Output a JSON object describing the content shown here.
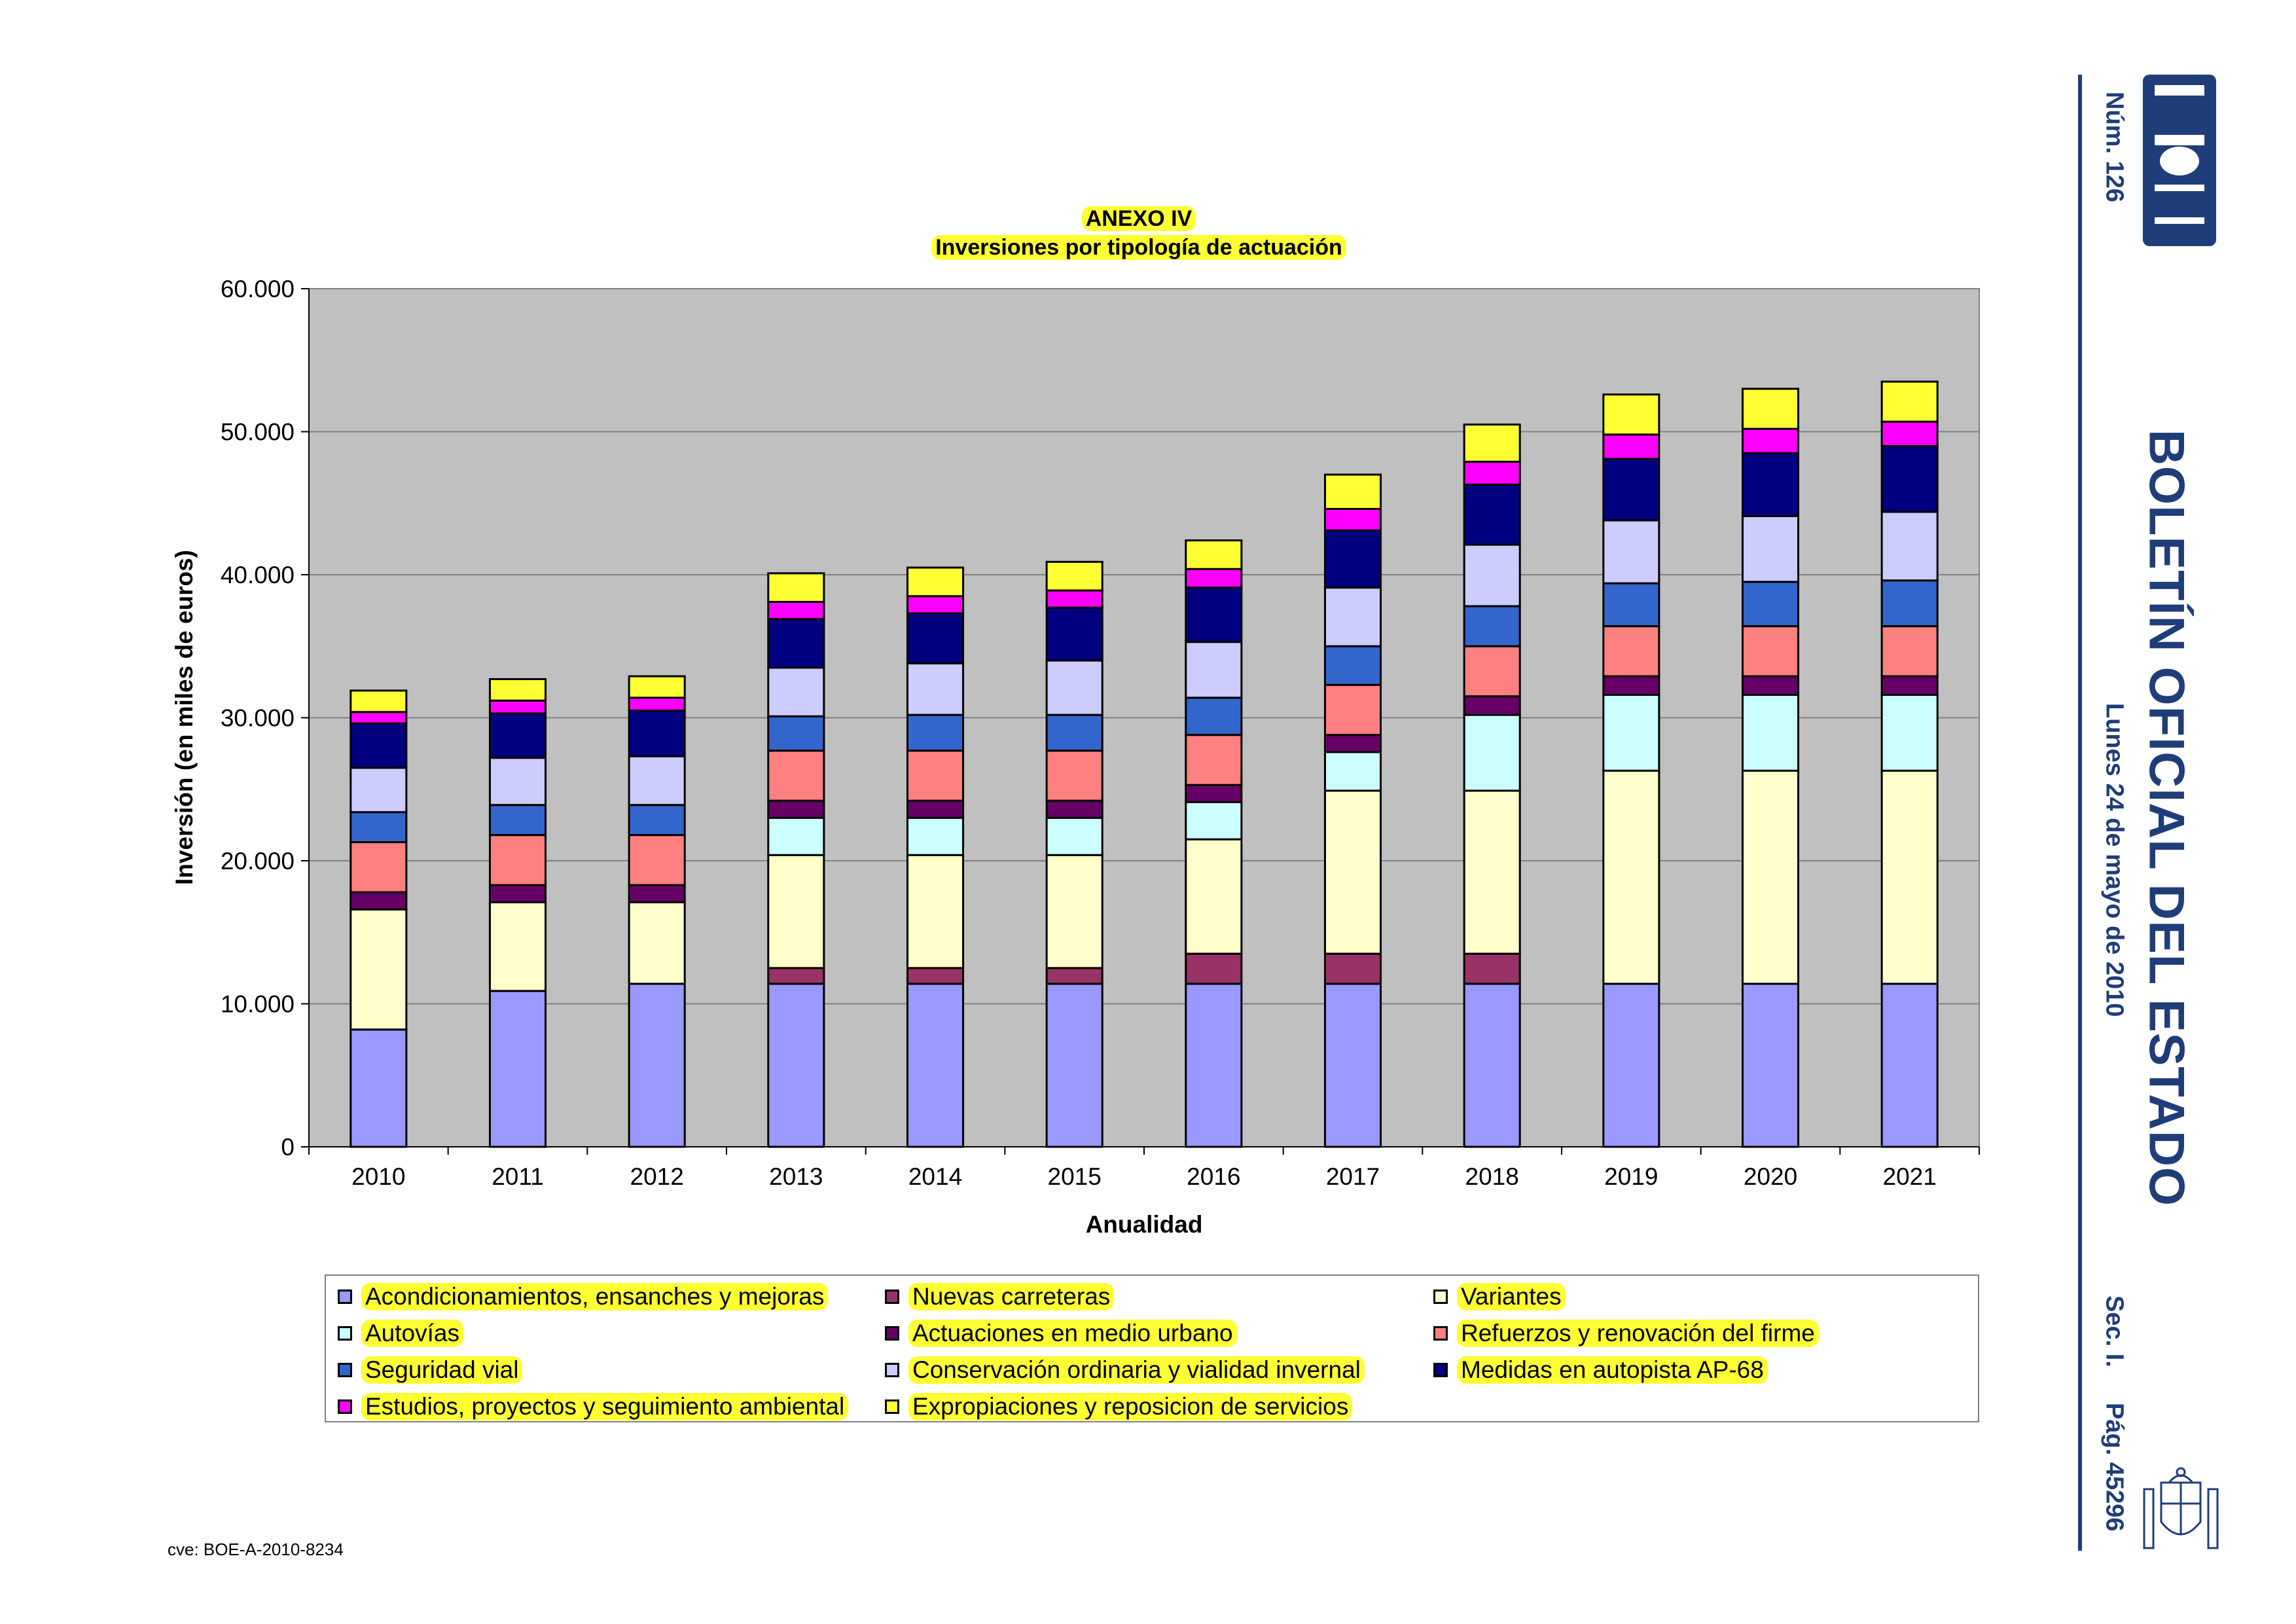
{
  "header": {
    "issue": "Núm. 126",
    "date": "Lunes 24 de mayo de 2010",
    "section": "Sec. I.",
    "page": "Pág. 45296",
    "publication_title": "BOLETÍN OFICIAL DEL ESTADO",
    "logo_text": "BOE"
  },
  "footer": {
    "cve": "cve: BOE-A-2010-8234"
  },
  "colors": {
    "plot_background": "#c0c0c0",
    "gridline": "#808080",
    "header_blue": "#1f3d79",
    "title_highlight": "#ffff33"
  },
  "chart_data": {
    "type": "bar",
    "stacked": true,
    "title": "ANEXO IV",
    "subtitle": "Inversiones por tipología de actuación",
    "xlabel": "Anualidad",
    "ylabel": "Inversión (en miles de euros)",
    "ylim": [
      0,
      60000
    ],
    "yticks": [
      "0",
      "10.000",
      "20.000",
      "30.000",
      "40.000",
      "50.000",
      "60.000"
    ],
    "ytick_values": [
      0,
      10000,
      20000,
      30000,
      40000,
      50000,
      60000
    ],
    "grid": true,
    "legend_position": "bottom",
    "categories": [
      "2010",
      "2011",
      "2012",
      "2013",
      "2014",
      "2015",
      "2016",
      "2017",
      "2018",
      "2019",
      "2020",
      "2021"
    ],
    "series": [
      {
        "name": "Acondicionamientos, ensanches y mejoras",
        "color": "#9999ff",
        "values": [
          8200,
          10900,
          11400,
          11400,
          11400,
          11400,
          11400,
          11400,
          11400,
          11400,
          11400,
          11400
        ]
      },
      {
        "name": "Nuevas carreteras",
        "color": "#993366",
        "values": [
          0,
          0,
          0,
          1100,
          1100,
          1100,
          2100,
          2100,
          2100,
          0,
          0,
          0
        ]
      },
      {
        "name": "Variantes",
        "color": "#ffffcc",
        "values": [
          8400,
          6200,
          5700,
          7900,
          7900,
          7900,
          8000,
          11400,
          11400,
          14900,
          14900,
          14900
        ]
      },
      {
        "name": "Autovías",
        "color": "#ccffff",
        "values": [
          0,
          0,
          0,
          2600,
          2600,
          2600,
          2600,
          2700,
          5300,
          5300,
          5300,
          5300
        ]
      },
      {
        "name": "Actuaciones en medio urbano",
        "color": "#660066",
        "values": [
          1200,
          1200,
          1200,
          1200,
          1200,
          1200,
          1200,
          1200,
          1300,
          1300,
          1300,
          1300
        ]
      },
      {
        "name": "Refuerzos y renovación del firme",
        "color": "#ff8080",
        "values": [
          3500,
          3500,
          3500,
          3500,
          3500,
          3500,
          3500,
          3500,
          3500,
          3500,
          3500,
          3500
        ]
      },
      {
        "name": "Seguridad vial",
        "color": "#3366cc",
        "values": [
          2100,
          2100,
          2100,
          2400,
          2500,
          2500,
          2600,
          2700,
          2800,
          3000,
          3100,
          3200
        ]
      },
      {
        "name": "Conservación ordinaria y vialidad invernal",
        "color": "#ccccff",
        "values": [
          3100,
          3300,
          3400,
          3400,
          3600,
          3800,
          3900,
          4100,
          4300,
          4400,
          4600,
          4800
        ]
      },
      {
        "name": "Medidas en autopista AP-68",
        "color": "#000080",
        "values": [
          3100,
          3100,
          3200,
          3400,
          3500,
          3700,
          3800,
          4000,
          4200,
          4300,
          4400,
          4600
        ]
      },
      {
        "name": "Estudios, proyectos y seguimiento ambiental",
        "color": "#ff00ff",
        "values": [
          800,
          900,
          900,
          1200,
          1200,
          1200,
          1300,
          1500,
          1600,
          1700,
          1700,
          1700
        ]
      },
      {
        "name": "Expropiaciones y reposicion de servicios",
        "color": "#ffff33",
        "values": [
          1500,
          1500,
          1500,
          2000,
          2000,
          2000,
          2000,
          2400,
          2600,
          2800,
          2800,
          2800
        ]
      }
    ]
  }
}
